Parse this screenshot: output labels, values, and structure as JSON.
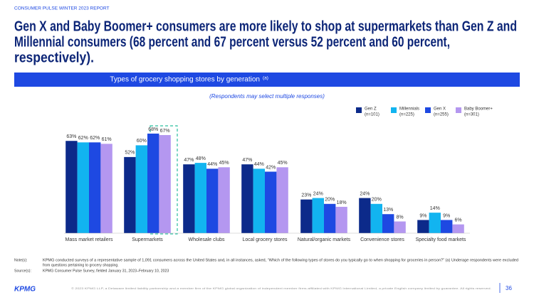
{
  "report": "CONSUMER PULSE WINTER 2023 REPORT",
  "headline": [
    "Gen X and Baby Boomer+ consumers are more likely to shop at supermarkets  than Gen Z and",
    "Millennial consumers (68 percent and 67 percent versus 52 percent and 60 percent,",
    "respectively)."
  ],
  "chart_data": {
    "type": "bar",
    "title": "Types of grocery shopping stores by generation",
    "title_note": "(a)",
    "subtitle": "(Respondents may select multiple responses)",
    "categories": [
      "Mass market retailers",
      "Supermarkets",
      "Wholesale clubs",
      "Local grocery stores",
      "Natural/organic markets",
      "Convenience stores",
      "Specialty food markets"
    ],
    "series": [
      {
        "name": "Gen Z",
        "n": "(n=101)",
        "color": "#0c2a8a",
        "values": [
          63,
          52,
          47,
          47,
          23,
          24,
          9
        ],
        "value_labels": [
          "63%",
          "52%",
          "47%",
          "47%",
          "23%",
          "24%",
          "9%"
        ]
      },
      {
        "name": "Millennials",
        "n": "(n=225)",
        "color": "#12b4f0",
        "values": [
          62,
          60,
          48,
          44,
          24,
          20,
          14
        ],
        "value_labels": [
          "62%",
          "60%",
          "48%",
          "44%",
          "24%",
          "20%",
          "14%"
        ]
      },
      {
        "name": "Gen X",
        "n": "(n=255)",
        "color": "#1e49e2",
        "values": [
          62,
          68,
          44,
          42,
          20,
          13,
          9
        ],
        "value_labels": [
          "62%",
          "68%",
          "44%",
          "42%",
          "20%",
          "13%",
          "9%"
        ]
      },
      {
        "name": "Baby Boomer+",
        "n": "(n=301)",
        "color": "#b497f0",
        "values": [
          61,
          67,
          45,
          45,
          18,
          8,
          6
        ],
        "value_labels": [
          "61%",
          "67%",
          "45%",
          "45%",
          "18%",
          "8%",
          "6%"
        ]
      }
    ]
  },
  "notes": {
    "notes_label": "Note(s):",
    "notes": [
      "KPMG conducted surveys of a representative sample of 1,091 consumers across the United States and, in all instances, asked, “Which of the following types of stores do you typically go to when shopping for groceries in person?” (a) Underage respondents were excluded",
      "from questions pertaining to grocery shopping."
    ],
    "source_label": "Source(s):",
    "source": "KPMG Consumer Pulse Survey, fielded January 31, 2023–February 10, 2023"
  },
  "footer": {
    "logo": "KPMG",
    "copyright": "© 2023 KPMG LLP, a Delaware limited liability partnership and a member firm of the KPMG global organization of independent member firms affiliated with KPMG International Limited, a private English company limited by guarantee. All rights reserved.",
    "page": "36"
  }
}
